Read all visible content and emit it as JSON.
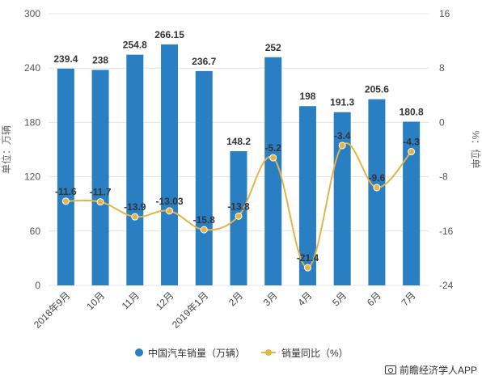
{
  "chart_data": {
    "type": "bar",
    "categories": [
      "2018年9月",
      "10月",
      "11月",
      "12月",
      "2019年1月",
      "2月",
      "3月",
      "4月",
      "5月",
      "6月",
      "7月"
    ],
    "series": [
      {
        "name": "中国汽车销量（万辆）",
        "type": "bar",
        "axis": "left",
        "color": "#2a7fc3",
        "values": [
          239.4,
          238,
          254.8,
          266.15,
          236.7,
          148.2,
          252,
          198,
          191.3,
          205.6,
          180.8
        ],
        "labels": [
          "239.4",
          "238",
          "254.8",
          "266.15",
          "236.7",
          "148.2",
          "252",
          "198",
          "191.3",
          "205.6",
          "180.8"
        ]
      },
      {
        "name": "销量同比（%）",
        "type": "line",
        "axis": "right",
        "color": "#e3b547",
        "values": [
          -11.6,
          -11.7,
          -13.9,
          -13.03,
          -15.8,
          -13.8,
          -5.2,
          -21.4,
          -3.4,
          -9.6,
          -4.3
        ],
        "labels": [
          "-11.6",
          "-11.7",
          "-13.9",
          "-13.03",
          "-15.8",
          "-13.8",
          "-5.2",
          "-21.4",
          "-3.4",
          "-9.6",
          "-4.3"
        ]
      }
    ],
    "ylabel": "单位：万辆",
    "ylabel_right": "%：位单",
    "ylim": [
      0,
      300
    ],
    "yticks": [
      "0",
      "60",
      "120",
      "180",
      "240",
      "300"
    ],
    "ylim_right": [
      -24,
      16
    ],
    "yticks_right": [
      "-24",
      "-16",
      "-8",
      "0",
      "8",
      "16"
    ],
    "grid": true,
    "legend_position": "bottom-center"
  },
  "credit": "前瞻经济学人APP"
}
